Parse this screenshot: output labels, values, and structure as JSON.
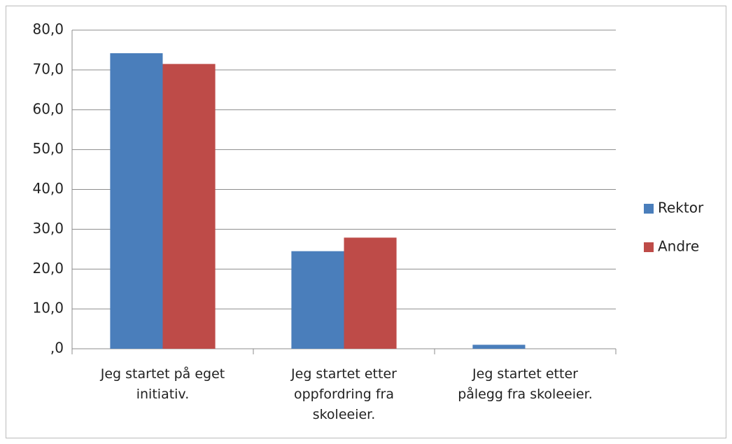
{
  "chart_data": {
    "type": "bar",
    "categories": [
      "Jeg startet på eget initiativ.",
      "Jeg startet etter oppfordring fra skoleeier.",
      "Jeg startet etter pålegg fra skoleeier."
    ],
    "series": [
      {
        "name": "Rektor",
        "color": "#4a7ebb",
        "values": [
          74.2,
          24.5,
          1.0
        ]
      },
      {
        "name": "Andre",
        "color": "#be4b48",
        "values": [
          71.5,
          27.9,
          0
        ]
      }
    ],
    "ylim": [
      0,
      80
    ],
    "yticks": [
      {
        "value": 0,
        "label": ",0"
      },
      {
        "value": 10,
        "label": "10,0"
      },
      {
        "value": 20,
        "label": "20,0"
      },
      {
        "value": 30,
        "label": "30,0"
      },
      {
        "value": 40,
        "label": "40,0"
      },
      {
        "value": 50,
        "label": "50,0"
      },
      {
        "value": 60,
        "label": "60,0"
      },
      {
        "value": 70,
        "label": "70,0"
      },
      {
        "value": 80,
        "label": "80,0"
      }
    ],
    "grid": true,
    "legend": "right"
  }
}
